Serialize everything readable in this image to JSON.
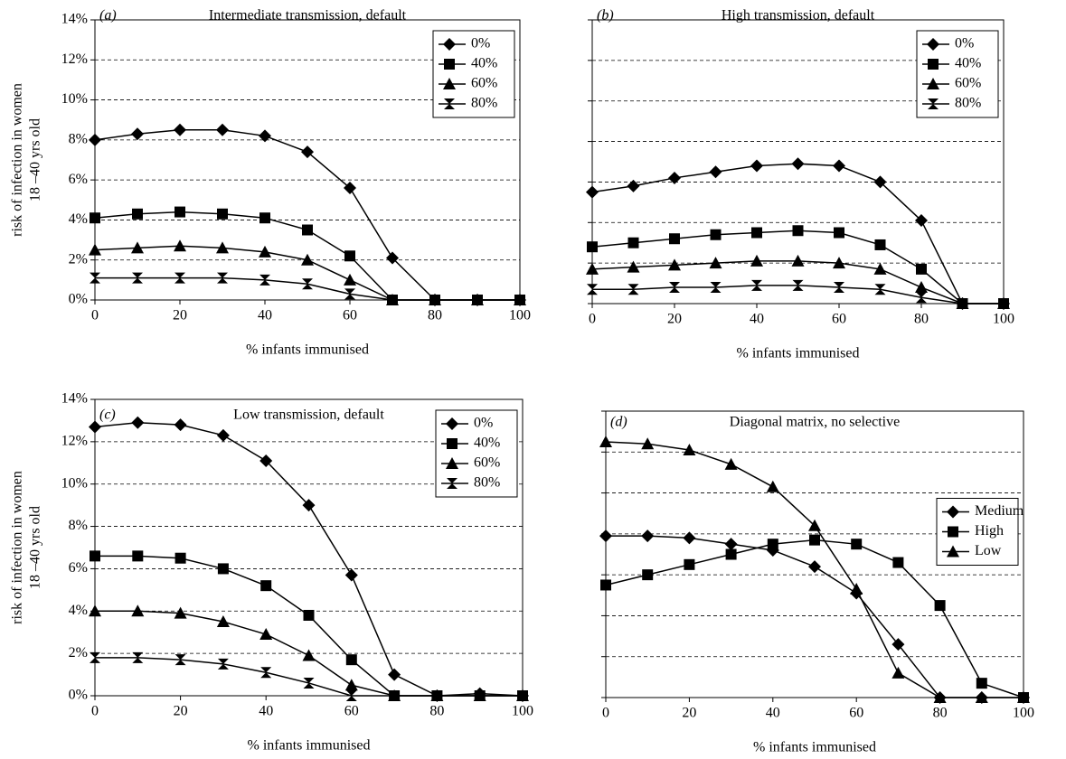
{
  "chart_data": [
    {
      "type": "line",
      "panel_label": "(a)",
      "title": "Intermediate transmission, default",
      "xlabel": "% infants immunised",
      "ylabel": [
        "risk of infection in women",
        "18 –40 yrs old"
      ],
      "x": [
        0,
        10,
        20,
        30,
        40,
        50,
        60,
        70,
        80,
        90,
        100
      ],
      "xlim": [
        0,
        100
      ],
      "xticks": [
        0,
        20,
        40,
        60,
        80,
        100
      ],
      "ylim": [
        0,
        14
      ],
      "yticks": [
        {
          "value": 0,
          "label": "0%"
        },
        {
          "value": 2,
          "label": "2%"
        },
        {
          "value": 4,
          "label": "4%"
        },
        {
          "value": 6,
          "label": "6%"
        },
        {
          "value": 8,
          "label": "8%"
        },
        {
          "value": 10,
          "label": "10%"
        },
        {
          "value": 12,
          "label": "12%"
        },
        {
          "value": 14,
          "label": "14%"
        }
      ],
      "grid": true,
      "legend": "upper right",
      "series": [
        {
          "name": "0%",
          "color": "#000000",
          "values": [
            8.0,
            8.3,
            8.5,
            8.5,
            8.2,
            7.4,
            5.6,
            2.1,
            0,
            0,
            0
          ]
        },
        {
          "name": "40%",
          "color": "#000000",
          "values": [
            4.1,
            4.3,
            4.4,
            4.3,
            4.1,
            3.5,
            2.2,
            0,
            0,
            0,
            0
          ]
        },
        {
          "name": "60%",
          "color": "#000000",
          "values": [
            2.5,
            2.6,
            2.7,
            2.6,
            2.4,
            2.0,
            1.0,
            0,
            0,
            0,
            0
          ]
        },
        {
          "name": "80%",
          "color": "#000000",
          "values": [
            1.1,
            1.1,
            1.1,
            1.1,
            1.0,
            0.8,
            0.3,
            0,
            0,
            0,
            0
          ]
        }
      ]
    },
    {
      "type": "line",
      "panel_label": "(b)",
      "title": "High transmission, default",
      "xlabel": "% infants immunised",
      "x": [
        0,
        10,
        20,
        30,
        40,
        50,
        60,
        70,
        80,
        90,
        100
      ],
      "xlim": [
        0,
        100
      ],
      "xticks": [
        0,
        20,
        40,
        60,
        80,
        100
      ],
      "ylim": [
        0,
        14
      ],
      "yticks": [
        0,
        2,
        4,
        6,
        8,
        10,
        12,
        14
      ],
      "ytick_labels": false,
      "grid": true,
      "legend": "upper right",
      "series": [
        {
          "name": "0%",
          "color": "#000000",
          "values": [
            5.5,
            5.8,
            6.2,
            6.5,
            6.8,
            6.9,
            6.8,
            6.0,
            4.1,
            0,
            0
          ]
        },
        {
          "name": "40%",
          "color": "#000000",
          "values": [
            2.8,
            3.0,
            3.2,
            3.4,
            3.5,
            3.6,
            3.5,
            2.9,
            1.7,
            0,
            0
          ]
        },
        {
          "name": "60%",
          "color": "#000000",
          "values": [
            1.7,
            1.8,
            1.9,
            2.0,
            2.1,
            2.1,
            2.0,
            1.7,
            0.8,
            0,
            0
          ]
        },
        {
          "name": "80%",
          "color": "#000000",
          "values": [
            0.7,
            0.7,
            0.8,
            0.8,
            0.9,
            0.9,
            0.8,
            0.7,
            0.3,
            0,
            0
          ]
        }
      ]
    },
    {
      "type": "line",
      "panel_label": "(c)",
      "title": "Low transmission, default",
      "xlabel": "% infants immunised",
      "ylabel": [
        "risk of infection in women",
        "18 –40 yrs old"
      ],
      "x": [
        0,
        10,
        20,
        30,
        40,
        50,
        60,
        70,
        80,
        90,
        100
      ],
      "xlim": [
        0,
        100
      ],
      "xticks": [
        0,
        20,
        40,
        60,
        80,
        100
      ],
      "ylim": [
        0,
        14
      ],
      "yticks": [
        {
          "value": 0,
          "label": "0%"
        },
        {
          "value": 2,
          "label": "2%"
        },
        {
          "value": 4,
          "label": "4%"
        },
        {
          "value": 6,
          "label": "6%"
        },
        {
          "value": 8,
          "label": "8%"
        },
        {
          "value": 10,
          "label": "10%"
        },
        {
          "value": 12,
          "label": "12%"
        },
        {
          "value": 14,
          "label": "14%"
        }
      ],
      "grid": true,
      "legend": "upper right",
      "series": [
        {
          "name": "0%",
          "color": "#000000",
          "values": [
            12.7,
            12.9,
            12.8,
            12.3,
            11.1,
            9.0,
            5.7,
            1.0,
            0,
            0.1,
            0
          ]
        },
        {
          "name": "40%",
          "color": "#000000",
          "values": [
            6.6,
            6.6,
            6.5,
            6.0,
            5.2,
            3.8,
            1.7,
            0,
            0,
            0,
            0
          ]
        },
        {
          "name": "60%",
          "color": "#000000",
          "values": [
            4.0,
            4.0,
            3.9,
            3.5,
            2.9,
            1.9,
            0.5,
            0,
            0,
            0,
            0
          ]
        },
        {
          "name": "80%",
          "color": "#000000",
          "values": [
            1.8,
            1.8,
            1.7,
            1.5,
            1.1,
            0.6,
            0,
            0,
            0,
            0,
            0
          ]
        }
      ]
    },
    {
      "type": "line",
      "panel_label": "(d)",
      "title": "Diagonal matrix, no selective",
      "xlabel": "% infants immunised",
      "x": [
        0,
        10,
        20,
        30,
        40,
        50,
        60,
        70,
        80,
        90,
        100
      ],
      "xlim": [
        0,
        100
      ],
      "xticks": [
        0,
        20,
        40,
        60,
        80,
        100
      ],
      "ylim": [
        0,
        14
      ],
      "yticks": [
        0,
        2,
        4,
        6,
        8,
        10,
        12,
        14
      ],
      "ytick_labels": false,
      "grid": true,
      "legend": "right",
      "series": [
        {
          "name": "Medium",
          "color": "#000000",
          "values": [
            7.9,
            7.9,
            7.8,
            7.5,
            7.2,
            6.4,
            5.1,
            2.6,
            0,
            0,
            0
          ]
        },
        {
          "name": "High",
          "color": "#000000",
          "values": [
            5.5,
            6.0,
            6.5,
            7.0,
            7.5,
            7.7,
            7.5,
            6.6,
            4.5,
            0.7,
            0
          ]
        },
        {
          "name": "Low",
          "color": "#000000",
          "values": [
            12.5,
            12.4,
            12.1,
            11.4,
            10.3,
            8.4,
            5.3,
            1.2,
            0,
            0,
            0
          ]
        }
      ]
    }
  ]
}
